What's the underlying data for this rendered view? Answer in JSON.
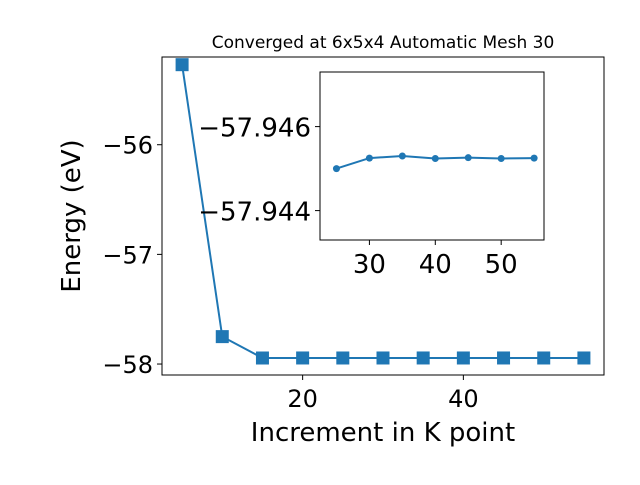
{
  "chart_data": [
    {
      "type": "line",
      "title": "Converged at 6x5x4 Automatic Mesh 30",
      "xlabel": "Increment in K point",
      "ylabel": "Energy (eV)",
      "xlim": [
        2.5,
        57.5
      ],
      "ylim": [
        -58.1,
        -55.2
      ],
      "xticks": [
        20,
        40
      ],
      "xtick_labels": [
        "20",
        "40"
      ],
      "yticks": [
        -56,
        -57,
        -58
      ],
      "ytick_labels": [
        "−56",
        "−57",
        "−58"
      ],
      "grid": false,
      "color": "#1f77b4",
      "marker": "square",
      "x": [
        5,
        10,
        15,
        20,
        25,
        30,
        35,
        40,
        45,
        50,
        55
      ],
      "y": [
        -55.27,
        -57.75,
        -57.945,
        -57.9447,
        -57.9449,
        -57.9448,
        -57.9447,
        -57.9448,
        -57.9447,
        -57.9448,
        -57.9448
      ]
    },
    {
      "type": "line",
      "title": "",
      "xlabel": "",
      "ylabel": "",
      "xlim": [
        22.5,
        56.5
      ],
      "ylim": [
        -57.9433,
        -57.9473
      ],
      "xticks": [
        30,
        40,
        50
      ],
      "xtick_labels": [
        "30",
        "40",
        "50"
      ],
      "yticks": [
        -57.946,
        -57.944
      ],
      "ytick_labels": [
        "−57.946",
        "−57.944"
      ],
      "grid": false,
      "color": "#1f77b4",
      "marker": "circle",
      "x": [
        25,
        30,
        35,
        40,
        45,
        50,
        55
      ],
      "y": [
        -57.945,
        -57.94525,
        -57.9453,
        -57.94524,
        -57.94526,
        -57.94524,
        -57.94525
      ]
    }
  ]
}
